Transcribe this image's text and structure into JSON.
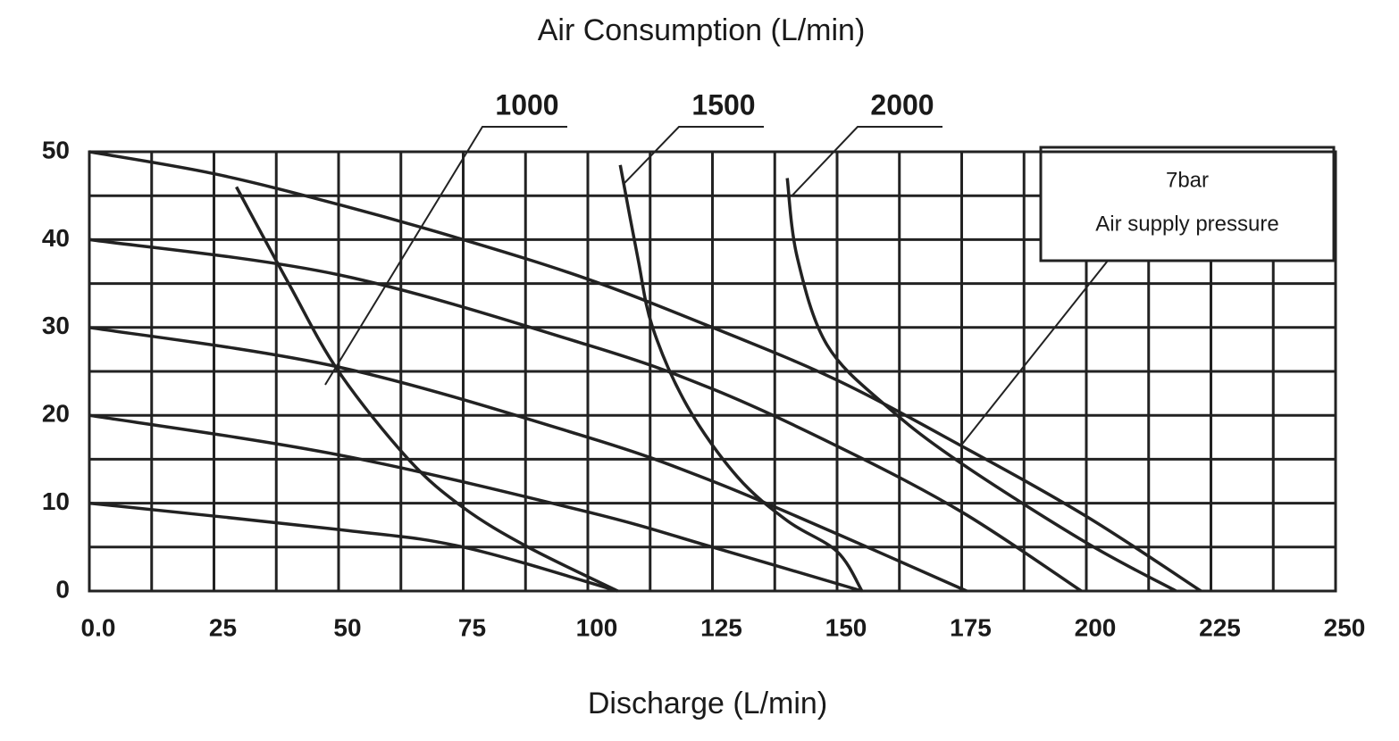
{
  "chart_data": {
    "type": "line",
    "title": "Air Consumption (L/min)",
    "x_label": "Discharge (L/min)",
    "xlim": [
      0,
      250
    ],
    "ylim": [
      0,
      50
    ],
    "xticks": [
      {
        "value": 0,
        "label": "0.0"
      },
      25,
      50,
      75,
      100,
      125,
      150,
      175,
      200,
      225,
      250
    ],
    "yticks": [
      0,
      10,
      20,
      30,
      40,
      50
    ],
    "grid": true,
    "color": "#222222",
    "annotations": [
      "7bar",
      "Air supply pressure"
    ],
    "series": [
      {
        "x": [
          0,
          25,
          50,
          75,
          100,
          125,
          150,
          175,
          200,
          223
        ],
        "values": [
          50,
          47.5,
          44,
          40,
          35.5,
          30,
          24,
          16.5,
          8.5,
          0
        ]
      },
      {
        "x": [
          0,
          50,
          100,
          125,
          150,
          175,
          199
        ],
        "values": [
          40,
          36,
          28,
          23,
          16.5,
          9,
          0
        ]
      },
      {
        "x": [
          0,
          50,
          100,
          125,
          150,
          176
        ],
        "values": [
          30,
          25.5,
          17.5,
          12.5,
          6.5,
          0
        ]
      },
      {
        "x": [
          0,
          50,
          100,
          125,
          155
        ],
        "values": [
          20,
          15.5,
          9,
          5,
          0
        ]
      },
      {
        "x": [
          0,
          50,
          75,
          106
        ],
        "values": [
          10,
          7,
          5,
          0
        ]
      },
      {
        "name": "1000",
        "x": [
          29.5,
          40,
          50,
          64,
          75,
          88,
          106
        ],
        "values": [
          46,
          35,
          25,
          15,
          9.5,
          5,
          0
        ]
      },
      {
        "name": "1500",
        "x": [
          106.5,
          110,
          113,
          120,
          130,
          140,
          150,
          155
        ],
        "values": [
          48.5,
          38,
          30,
          21,
          13,
          8,
          4.5,
          0
        ]
      },
      {
        "name": "2000",
        "x": [
          140,
          142,
          148,
          160,
          175,
          200,
          218
        ],
        "values": [
          47,
          38,
          28,
          21,
          14.5,
          5.5,
          0
        ]
      }
    ]
  }
}
